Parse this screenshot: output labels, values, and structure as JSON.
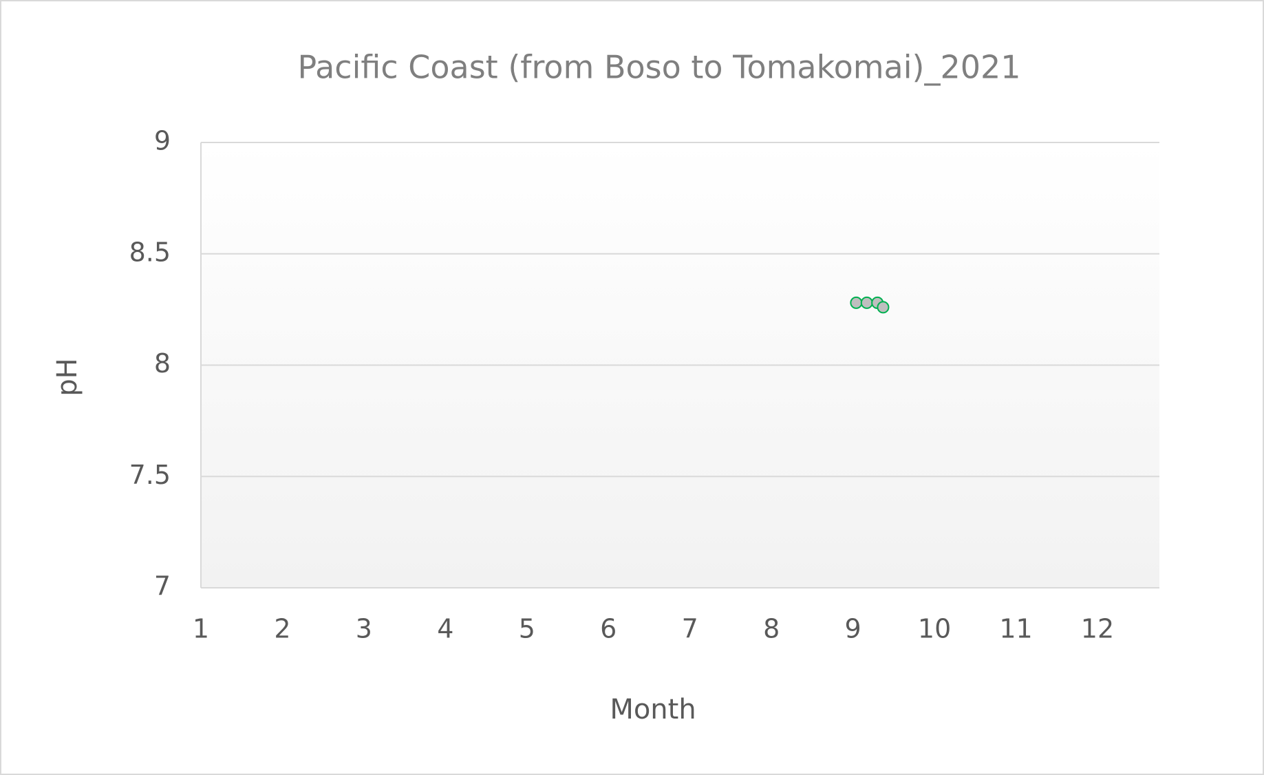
{
  "chart_data": {
    "type": "scatter",
    "title": "Pacific Coast (from Boso to Tomakomai)_2021",
    "x_label": "Month",
    "y_label": "pH",
    "series": [
      {
        "color": "#00b050",
        "x": [
          9.04,
          9.17,
          9.3,
          9.37
        ],
        "values": [
          8.28,
          8.28,
          8.28,
          8.26
        ]
      }
    ],
    "xlim": [
      1,
      12.76
    ],
    "xticks": [
      1,
      2,
      3,
      4,
      5,
      6,
      7,
      8,
      9,
      10,
      11,
      12
    ],
    "ylim": [
      7,
      9
    ],
    "yticks": [
      7,
      7.5,
      8,
      8.5,
      9
    ],
    "grid": true
  }
}
